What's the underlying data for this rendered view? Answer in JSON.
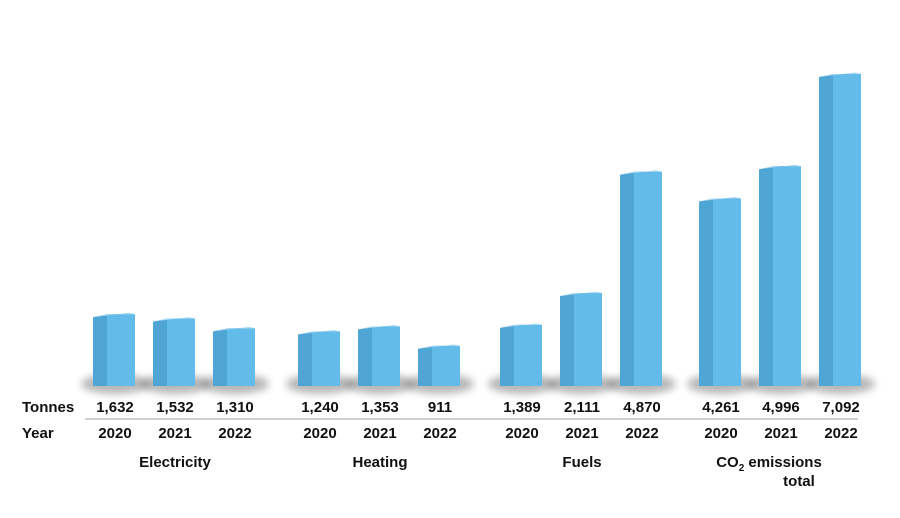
{
  "chart_data": {
    "type": "bar",
    "title": "",
    "xlabel": "",
    "ylabel": "",
    "row_labels": {
      "values": "Tonnes",
      "years": "Year"
    },
    "colors": {
      "front": "#62bbe8",
      "side": "#4fa6d4",
      "top": "#a9d9f3"
    },
    "ylim": [
      0,
      7092
    ],
    "groups": [
      {
        "label": "Electricity",
        "label2": "",
        "years": [
          "2020",
          "2021",
          "2022"
        ],
        "values": [
          1632,
          1532,
          1310
        ],
        "value_labels": [
          "1,632",
          "1,532",
          "1,310"
        ]
      },
      {
        "label": "Heating",
        "label2": "",
        "years": [
          "2020",
          "2021",
          "2022"
        ],
        "values": [
          1240,
          1353,
          911
        ],
        "value_labels": [
          "1,240",
          "1,353",
          "911"
        ]
      },
      {
        "label": "Fuels",
        "label2": "",
        "years": [
          "2020",
          "2021",
          "2022"
        ],
        "values": [
          1389,
          2111,
          4870
        ],
        "value_labels": [
          "1,389",
          "2,111",
          "4,870"
        ]
      },
      {
        "label": "CO",
        "label_sub": "2",
        "label_rest": " emissions",
        "label2": "total",
        "years": [
          "2020",
          "2021",
          "2022"
        ],
        "values": [
          4261,
          4996,
          7092
        ],
        "value_labels": [
          "4,261",
          "4,996",
          "7,092"
        ]
      }
    ]
  }
}
